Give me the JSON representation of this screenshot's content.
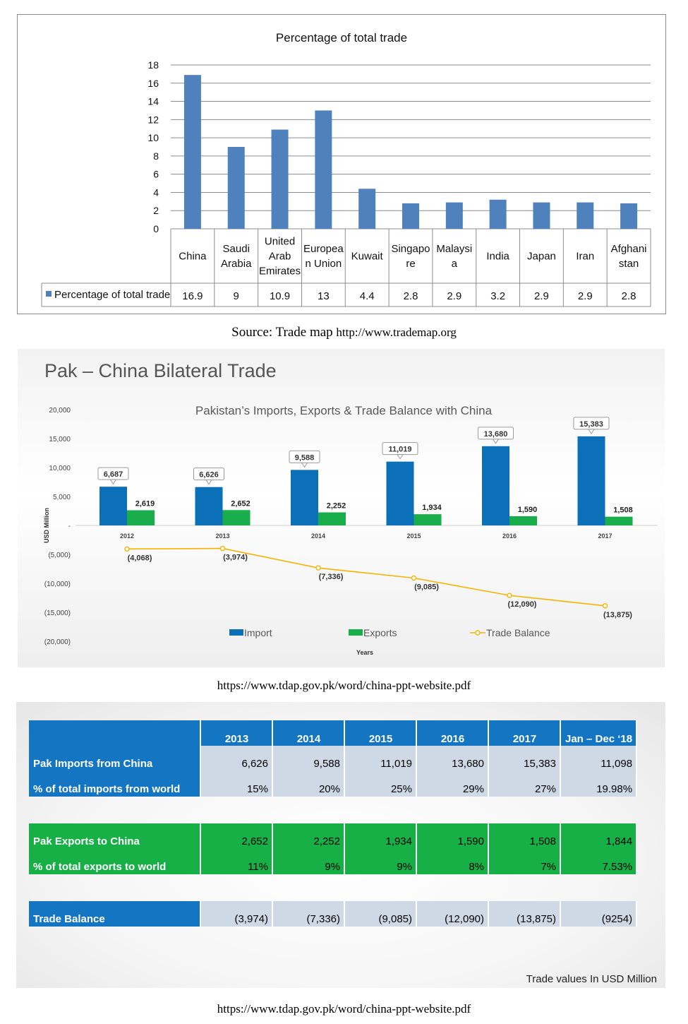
{
  "chart_data": [
    {
      "type": "bar",
      "title": "Percentage of total trade",
      "categories": [
        "China",
        "Saudi Arabia",
        "United Arab Emirates",
        "European Union",
        "Kuwait",
        "Singapore",
        "Malaysia",
        "India",
        "Japan",
        "Iran",
        "Afghanistan"
      ],
      "category_lines": [
        [
          "China"
        ],
        [
          "Saudi",
          "Arabia"
        ],
        [
          "United",
          "Arab",
          "Emirates"
        ],
        [
          "Europea",
          "n Union"
        ],
        [
          "Kuwait"
        ],
        [
          "Singapo",
          "re"
        ],
        [
          "Malaysi",
          "a"
        ],
        [
          "India"
        ],
        [
          "Japan"
        ],
        [
          "Iran"
        ],
        [
          "Afghani",
          "stan"
        ]
      ],
      "series": [
        {
          "name": "Percentage of total trade",
          "values": [
            16.9,
            9,
            10.9,
            13,
            4.4,
            2.8,
            2.9,
            3.2,
            2.9,
            2.9,
            2.8
          ]
        }
      ],
      "value_labels": [
        "16.9",
        "9",
        "10.9",
        "13",
        "4.4",
        "2.8",
        "2.9",
        "3.2",
        "2.9",
        "2.9",
        "2.8"
      ],
      "ylim": [
        0,
        18
      ],
      "yticks": [
        0,
        2,
        4,
        6,
        8,
        10,
        12,
        14,
        16,
        18
      ],
      "grid": true,
      "legend": "data-table",
      "color": "#4f81bd"
    },
    {
      "type": "bar",
      "title": "Pakistan’s Imports, Exports & Trade Balance with China",
      "xlabel": "Years",
      "ylabel": "USD Million",
      "categories": [
        "2012",
        "2013",
        "2014",
        "2015",
        "2016",
        "2017"
      ],
      "series": [
        {
          "name": "Import",
          "type": "bar",
          "color": "#0c70b9",
          "values": [
            6687,
            6626,
            9588,
            11019,
            13680,
            15383
          ],
          "labels": [
            "6,687",
            "6,626",
            "9,588",
            "11,019",
            "13,680",
            "15,383"
          ]
        },
        {
          "name": "Exports",
          "type": "bar",
          "color": "#1aad4b",
          "values": [
            2619,
            2652,
            2252,
            1934,
            1590,
            1508
          ],
          "labels": [
            "2,619",
            "2,652",
            "2,252",
            "1,934",
            "1,590",
            "1,508"
          ]
        },
        {
          "name": "Trade Balance",
          "type": "line",
          "color": "#f4b400",
          "values": [
            -4068,
            -3974,
            -7336,
            -9085,
            -12090,
            -13875
          ],
          "labels": [
            "(4,068)",
            "(3,974)",
            "(7,336)",
            "(9,085)",
            "(12,090)",
            "(13,875)"
          ]
        }
      ],
      "ylim": [
        -20000,
        20000
      ],
      "yticks": [
        20000,
        15000,
        10000,
        5000,
        0,
        -5000,
        -10000,
        -15000,
        -20000
      ],
      "ytick_labels": [
        "20,000",
        "15,000",
        "10,000",
        "5,000",
        "-",
        "(5,000)",
        "(10,000)",
        "(15,000)",
        "(20,000)"
      ],
      "grid": false,
      "legend": "bottom"
    }
  ],
  "captions": {
    "source1_prefix": "Source: Trade map ",
    "source1_url": "http://www.trademap.org",
    "source2": "https://www.tdap.gov.pk/word/china-ppt-website.pdf",
    "source3": "https://www.tdap.gov.pk/word/china-ppt-website.pdf"
  },
  "panel2": {
    "heading": "Pak – China Bilateral Trade"
  },
  "table": {
    "headers": [
      "2013",
      "2014",
      "2015",
      "2016",
      "2017",
      "Jan – Dec ‘18"
    ],
    "rows": [
      {
        "label": "Pak Imports from China",
        "values": [
          "6,626",
          "9,588",
          "11,019",
          "13,680",
          "15,383",
          "11,098"
        ]
      },
      {
        "label": "% of total imports from world",
        "values": [
          "15%",
          "20%",
          "25%",
          "29%",
          "27%",
          "19.98%"
        ]
      },
      {
        "label": "Pak Exports to China",
        "values": [
          "2,652",
          "2,252",
          "1,934",
          "1,590",
          "1,508",
          "1,844"
        ]
      },
      {
        "label": "% of total exports to world",
        "values": [
          "11%",
          "9%",
          "9%",
          "8%",
          "7%",
          "7.53%"
        ]
      },
      {
        "label": "Trade Balance",
        "values": [
          "(3,974)",
          "(7,336)",
          "(9,085)",
          "(12,090)",
          "(13,875)",
          "(9254)"
        ]
      }
    ],
    "note": "Trade values In USD Million"
  }
}
